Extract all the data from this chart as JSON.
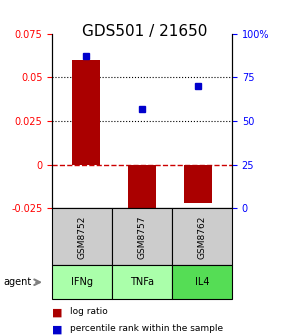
{
  "title": "GDS501 / 21650",
  "samples": [
    "GSM8752",
    "GSM8757",
    "GSM8762"
  ],
  "agents": [
    "IFNg",
    "TNFa",
    "IL4"
  ],
  "log_ratios": [
    0.06,
    -0.03,
    -0.022
  ],
  "percentile_ranks": [
    87.0,
    57.0,
    70.0
  ],
  "bar_color": "#aa0000",
  "dot_color": "#0000cc",
  "ylim_left": [
    -0.025,
    0.075
  ],
  "ylim_right": [
    0,
    100
  ],
  "yticks_left": [
    -0.025,
    0.0,
    0.025,
    0.05,
    0.075
  ],
  "ytick_labels_left": [
    "-0.025",
    "0",
    "0.025",
    "0.05",
    "0.075"
  ],
  "yticks_right": [
    0,
    25,
    50,
    75,
    100
  ],
  "ytick_labels_right": [
    "0",
    "25",
    "50",
    "75",
    "100%"
  ],
  "grid_yticks": [
    0.025,
    0.05
  ],
  "zero_line_color": "#cc0000",
  "agent_colors": [
    "#aaffaa",
    "#aaffaa",
    "#55dd55"
  ],
  "sample_box_color": "#cccccc",
  "title_fontsize": 11,
  "tick_fontsize": 7,
  "label_fontsize": 8,
  "bar_width": 0.5
}
